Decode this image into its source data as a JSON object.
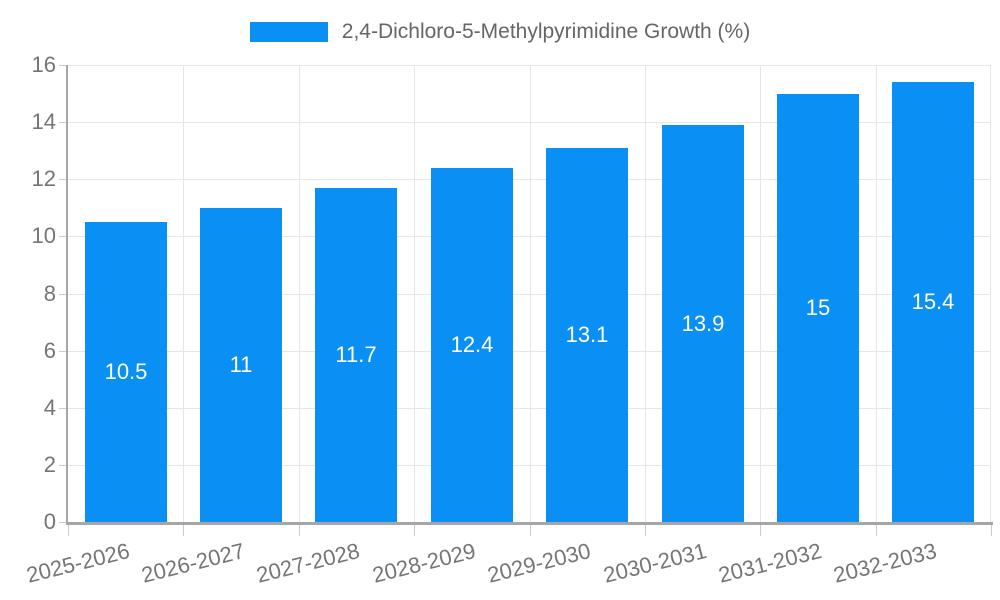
{
  "legend": {
    "label": "2,4-Dichloro-5-Methylpyrimidine Growth (%)"
  },
  "chart_data": {
    "type": "bar",
    "title": "2,4-Dichloro-5-Methylpyrimidine Growth (%)",
    "categories": [
      "2025-2026",
      "2026-2027",
      "2027-2028",
      "2028-2029",
      "2029-2030",
      "2030-2031",
      "2031-2032",
      "2032-2033"
    ],
    "series": [
      {
        "name": "2,4-Dichloro-5-Methylpyrimidine Growth (%)",
        "values": [
          10.5,
          11,
          11.7,
          12.4,
          13.1,
          13.9,
          15,
          15.4
        ],
        "value_labels": [
          "10.5",
          "11",
          "11.7",
          "12.4",
          "13.1",
          "13.9",
          "15",
          "15.4"
        ]
      }
    ],
    "xlabel": "",
    "ylabel": "",
    "ylim": [
      0,
      16
    ],
    "yticks": [
      0,
      2,
      4,
      6,
      8,
      10,
      12,
      14,
      16
    ],
    "grid": true,
    "legend_position": "top-center",
    "value_labels_position": "inside-center",
    "colors": {
      "bar": "#0a8ff5",
      "value_label": "#ffffff",
      "axis_text": "#757575",
      "legend_text": "#666666",
      "gridline": "#e6e6e6",
      "axis_line": "#a6a6a6",
      "tick": "#cccccc",
      "background": "#ffffff"
    }
  }
}
